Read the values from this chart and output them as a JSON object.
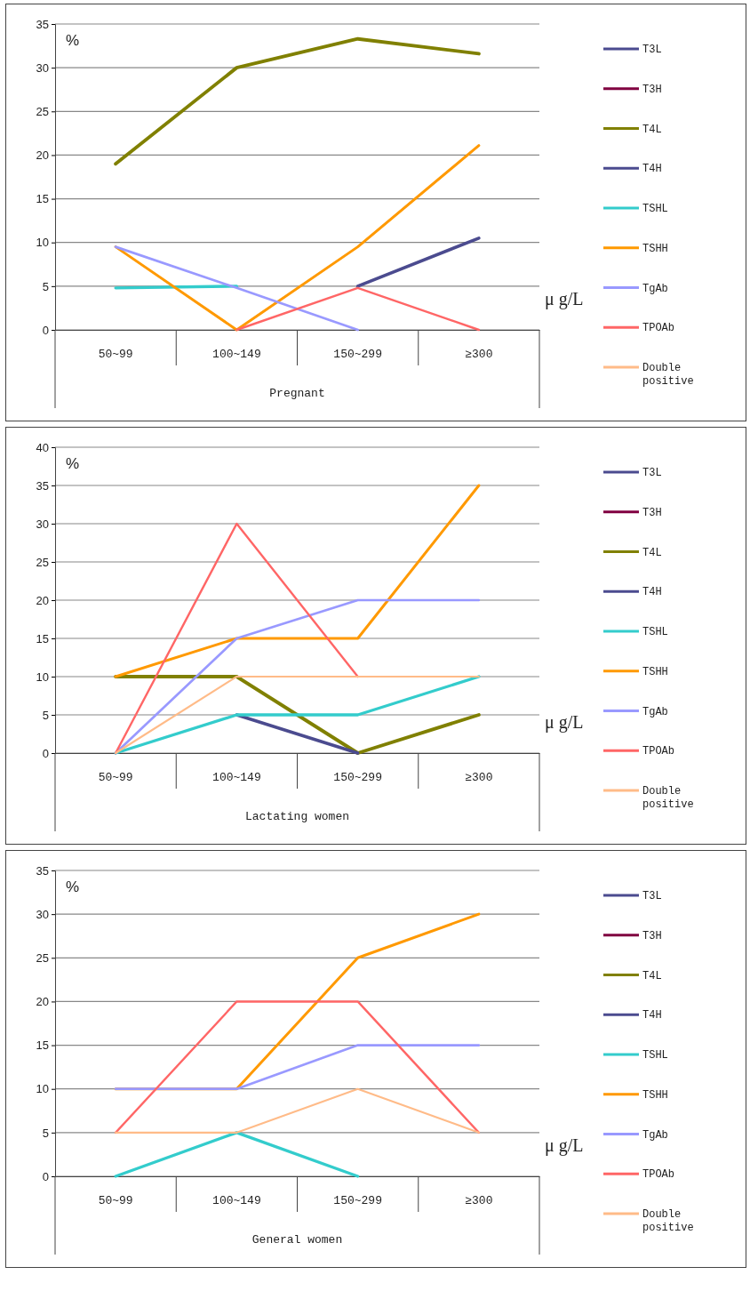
{
  "chart_data": [
    {
      "type": "line",
      "xlabel": "Pregnant",
      "categories": [
        "50~99",
        "100~149",
        "150~299",
        "≥300"
      ],
      "ylim": [
        0,
        35
      ],
      "yticks": [
        0,
        5,
        10,
        15,
        20,
        25,
        30,
        35
      ],
      "grid": "y",
      "legend": "right",
      "annotations": [
        "%",
        "μ g/L"
      ],
      "series": [
        {
          "name": "T3L",
          "color": "#4b4b8f",
          "values": [
            null,
            null,
            null,
            null
          ]
        },
        {
          "name": "T3H",
          "color": "#800040",
          "values": [
            null,
            null,
            null,
            null
          ]
        },
        {
          "name": "T4L",
          "color": "#808000",
          "values": [
            19,
            30,
            33.3,
            31.6
          ]
        },
        {
          "name": "T4H",
          "color": "#4b4b8f",
          "values": [
            null,
            null,
            5,
            10.5
          ]
        },
        {
          "name": "TSHL",
          "color": "#33cccc",
          "values": [
            4.8,
            5,
            null,
            null
          ]
        },
        {
          "name": "TSHH",
          "color": "#ff9900",
          "values": [
            9.5,
            0,
            9.5,
            21.1
          ]
        },
        {
          "name": "TgAb",
          "color": "#9999ff",
          "values": [
            9.5,
            4.8,
            0,
            null
          ]
        },
        {
          "name": "TPOAb",
          "color": "#ff6666",
          "values": [
            null,
            0,
            4.8,
            0
          ]
        },
        {
          "name": "Double positive",
          "color": "#ffbb88",
          "values": [
            null,
            null,
            null,
            null
          ]
        }
      ]
    },
    {
      "type": "line",
      "xlabel": "Lactating women",
      "categories": [
        "50~99",
        "100~149",
        "150~299",
        "≥300"
      ],
      "ylim": [
        0,
        40
      ],
      "yticks": [
        0,
        5,
        10,
        15,
        20,
        25,
        30,
        35,
        40
      ],
      "grid": "y",
      "legend": "right",
      "annotations": [
        "%",
        "μ g/L"
      ],
      "series": [
        {
          "name": "T3L",
          "color": "#4b4b8f",
          "values": [
            null,
            null,
            null,
            null
          ]
        },
        {
          "name": "T3H",
          "color": "#800040",
          "values": [
            null,
            null,
            null,
            null
          ]
        },
        {
          "name": "T4L",
          "color": "#808000",
          "values": [
            10,
            10,
            0,
            5
          ]
        },
        {
          "name": "T4H",
          "color": "#4b4b8f",
          "values": [
            null,
            5,
            0,
            null
          ]
        },
        {
          "name": "TSHL",
          "color": "#33cccc",
          "values": [
            0,
            5,
            5,
            10
          ]
        },
        {
          "name": "TSHH",
          "color": "#ff9900",
          "values": [
            10,
            15,
            15,
            35
          ]
        },
        {
          "name": "TgAb",
          "color": "#9999ff",
          "values": [
            0,
            15,
            20,
            20
          ]
        },
        {
          "name": "TPOAb",
          "color": "#ff6666",
          "values": [
            0,
            30,
            10,
            null
          ]
        },
        {
          "name": "Double positive",
          "color": "#ffbb88",
          "values": [
            0,
            10,
            10,
            10
          ]
        }
      ]
    },
    {
      "type": "line",
      "xlabel": "General women",
      "categories": [
        "50~99",
        "100~149",
        "150~299",
        "≥300"
      ],
      "ylim": [
        0,
        35
      ],
      "yticks": [
        0,
        5,
        10,
        15,
        20,
        25,
        30,
        35
      ],
      "grid": "y",
      "legend": "right",
      "annotations": [
        "%",
        "μ g/L"
      ],
      "series": [
        {
          "name": "T3L",
          "color": "#4b4b8f",
          "values": [
            null,
            null,
            null,
            null
          ]
        },
        {
          "name": "T3H",
          "color": "#800040",
          "values": [
            null,
            null,
            null,
            null
          ]
        },
        {
          "name": "T4L",
          "color": "#808000",
          "values": [
            null,
            null,
            null,
            null
          ]
        },
        {
          "name": "T4H",
          "color": "#4b4b8f",
          "values": [
            null,
            null,
            null,
            null
          ]
        },
        {
          "name": "TSHL",
          "color": "#33cccc",
          "values": [
            0,
            5,
            0,
            null
          ]
        },
        {
          "name": "TSHH",
          "color": "#ff9900",
          "values": [
            10,
            10,
            25,
            30
          ]
        },
        {
          "name": "TgAb",
          "color": "#9999ff",
          "values": [
            10,
            10,
            15,
            15
          ]
        },
        {
          "name": "TPOAb",
          "color": "#ff6666",
          "values": [
            5,
            20,
            20,
            5
          ]
        },
        {
          "name": "Double positive",
          "color": "#ffbb88",
          "values": [
            5,
            5,
            10,
            5
          ]
        }
      ]
    }
  ]
}
